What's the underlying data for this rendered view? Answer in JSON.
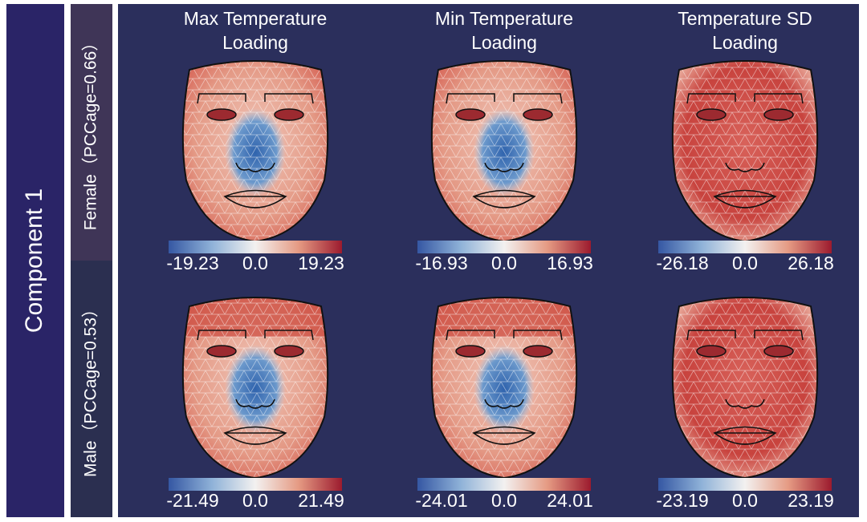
{
  "side_label": "Component 1",
  "rows": [
    {
      "label": "Female（PCCage=0.66）"
    },
    {
      "label": "Male（PCCage=0.53）"
    }
  ],
  "columns": [
    {
      "title_lines": [
        "Max Temperature",
        "Loading"
      ]
    },
    {
      "title_lines": [
        "Min Temperature",
        "Loading"
      ]
    },
    {
      "title_lines": [
        "Temperature SD",
        "Loading"
      ]
    }
  ],
  "panels": [
    [
      {
        "scale": [
          "-19.23",
          "0.0",
          "19.23"
        ]
      },
      {
        "scale": [
          "-16.93",
          "0.0",
          "16.93"
        ]
      },
      {
        "scale": [
          "-26.18",
          "0.0",
          "26.18"
        ]
      }
    ],
    [
      {
        "scale": [
          "-21.49",
          "0.0",
          "21.49"
        ]
      },
      {
        "scale": [
          "-24.01",
          "0.0",
          "24.01"
        ]
      },
      {
        "scale": [
          "-23.19",
          "0.0",
          "23.19"
        ]
      }
    ]
  ]
}
